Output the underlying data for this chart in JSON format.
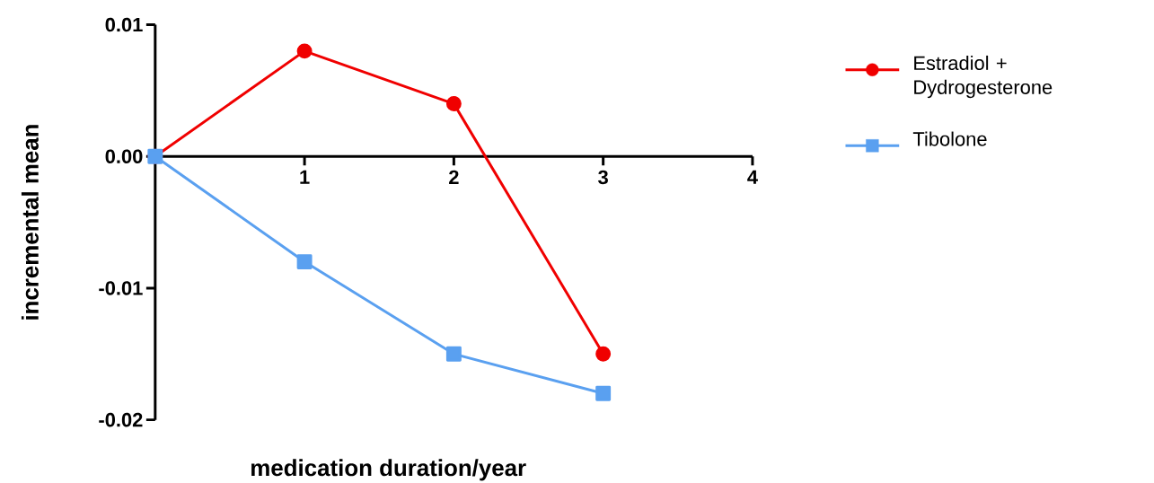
{
  "chart_data": {
    "type": "line",
    "xlabel": "medication duration/year",
    "ylabel": "incremental mean",
    "x": [
      0,
      1,
      2,
      3
    ],
    "series": [
      {
        "name": "Estradiol + Dydrogesterone",
        "color": "#f00000",
        "marker": "circle",
        "values": [
          0,
          0.008,
          0.004,
          -0.015
        ]
      },
      {
        "name": "Tibolone",
        "color": "#5aa0f0",
        "marker": "square",
        "values": [
          0,
          -0.008,
          -0.015,
          -0.018
        ]
      }
    ],
    "xlim": [
      0,
      4
    ],
    "xticks": [
      1,
      2,
      3,
      4
    ],
    "ylim": [
      -0.02,
      0.01
    ],
    "yticks": [
      {
        "value": 0.01,
        "label": "0.01"
      },
      {
        "value": 0,
        "label": "0.00"
      },
      {
        "value": -0.01,
        "label": "-0.01"
      },
      {
        "value": -0.02,
        "label": "-0.02"
      }
    ],
    "grid": false,
    "legend": "right",
    "line_style": "solid"
  }
}
